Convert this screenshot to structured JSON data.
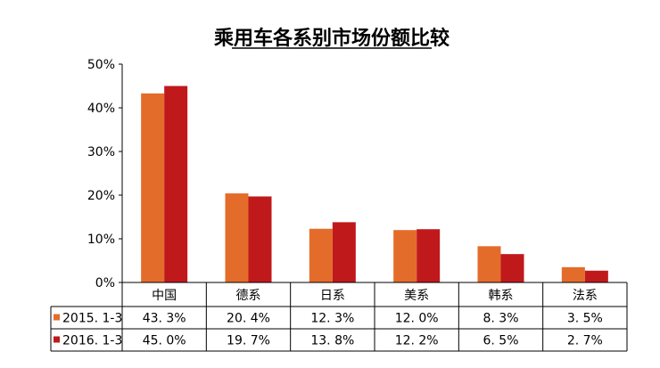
{
  "chart_data": {
    "type": "bar",
    "title": "乘用车各系别市场份额比较",
    "categories": [
      "中国",
      "德系",
      "日系",
      "美系",
      "韩系",
      "法系"
    ],
    "series": [
      {
        "name": "2015. 1-3",
        "color": "#E46C2A",
        "values": [
          43.3,
          20.4,
          12.3,
          12.0,
          8.3,
          3.5
        ],
        "labels": [
          "43. 3%",
          "20. 4%",
          "12. 3%",
          "12. 0%",
          "8. 3%",
          "3. 5%"
        ]
      },
      {
        "name": "2016. 1-3",
        "color": "#C0191C",
        "values": [
          45.0,
          19.7,
          13.8,
          12.2,
          6.5,
          2.7
        ],
        "labels": [
          "45. 0%",
          "19. 7%",
          "13. 8%",
          "12. 2%",
          "6. 5%",
          "2. 7%"
        ]
      }
    ],
    "ylim": [
      0,
      50
    ],
    "yticks": [
      "0%",
      "10%",
      "20%",
      "30%",
      "40%",
      "50%"
    ],
    "grid": false,
    "legend": "data-table"
  }
}
